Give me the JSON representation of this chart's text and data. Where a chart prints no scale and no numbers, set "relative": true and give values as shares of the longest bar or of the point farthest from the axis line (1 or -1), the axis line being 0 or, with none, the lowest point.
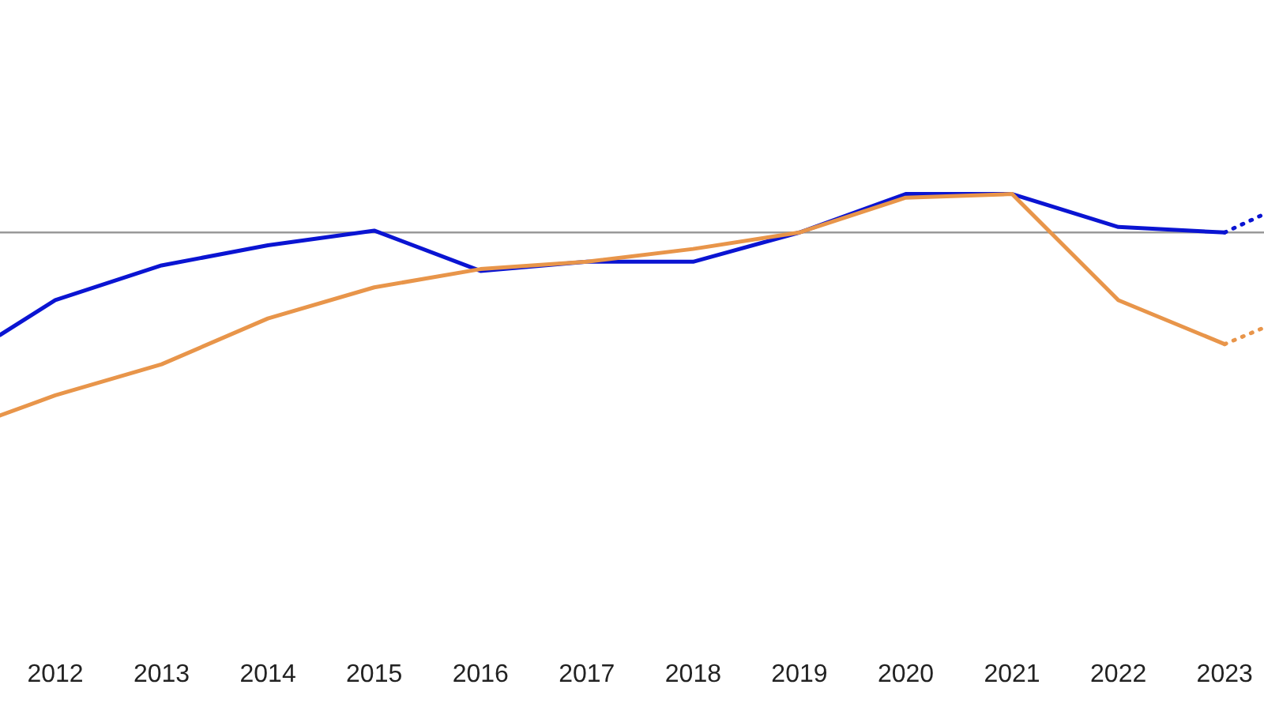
{
  "chart_data": {
    "type": "line",
    "relative": true,
    "xlim": [
      2011.48,
      2023.37
    ],
    "xticks": [
      2012,
      2013,
      2014,
      2015,
      2016,
      2017,
      2018,
      2019,
      2020,
      2021,
      2022,
      2023
    ],
    "series": [
      {
        "color": "#0a14d2",
        "x": [
          2011.48,
          2012,
          2013,
          2014,
          2015,
          2016,
          2017,
          2018,
          2019,
          2020,
          2021,
          2022,
          2023
        ],
        "values": [
          -0.56,
          -0.37,
          -0.18,
          -0.07,
          0.01,
          -0.21,
          -0.16,
          -0.16,
          0,
          0.21,
          0.21,
          0.03,
          0
        ]
      },
      {
        "color": "#e8954a",
        "x": [
          2011.48,
          2012,
          2013,
          2014,
          2015,
          2016,
          2017,
          2018,
          2019,
          2020,
          2021,
          2022,
          2023
        ],
        "values": [
          -1,
          -0.89,
          -0.72,
          -0.47,
          -0.3,
          -0.2,
          -0.16,
          -0.09,
          0,
          0.19,
          0.21,
          -0.37,
          -0.61
        ]
      },
      {
        "color": "#0a14d2",
        "line_style": "dotted",
        "x": [
          2023,
          2023.37
        ],
        "values": [
          0,
          0.1
        ]
      },
      {
        "color": "#e8954a",
        "line_style": "dotted",
        "x": [
          2023,
          2023.37
        ],
        "values": [
          -0.61,
          -0.52
        ]
      }
    ]
  }
}
